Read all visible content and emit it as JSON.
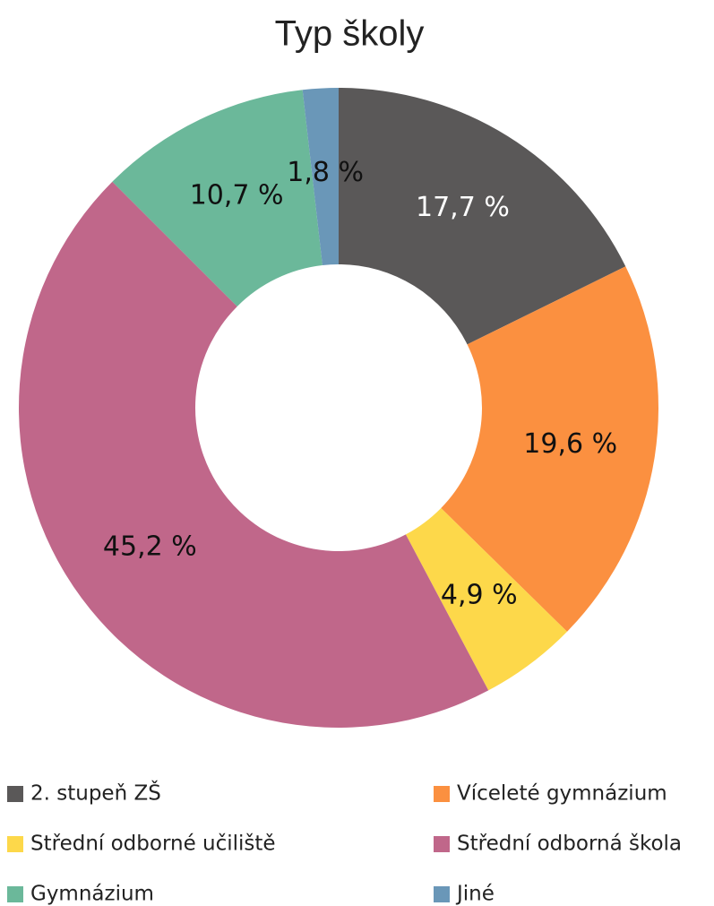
{
  "chart_data": {
    "type": "donut",
    "title": "Typ školy",
    "categories": [
      "2. stupeň ZŠ",
      "Víceleté gymnázium",
      "Střední odborné učiliště",
      "Střední odborná škola",
      "Gymnázium",
      "Jiné"
    ],
    "values": [
      17.7,
      19.6,
      4.9,
      45.2,
      10.7,
      1.8
    ],
    "value_labels": [
      "17,7 %",
      "19,6 %",
      "4,9 %",
      "45,2 %",
      "10,7 %",
      "1,8 %"
    ],
    "colors": [
      "#5a5858",
      "#fb9040",
      "#fdd84a",
      "#c0678a",
      "#6bb89a",
      "#6a97b8"
    ],
    "legend": "bottom"
  }
}
